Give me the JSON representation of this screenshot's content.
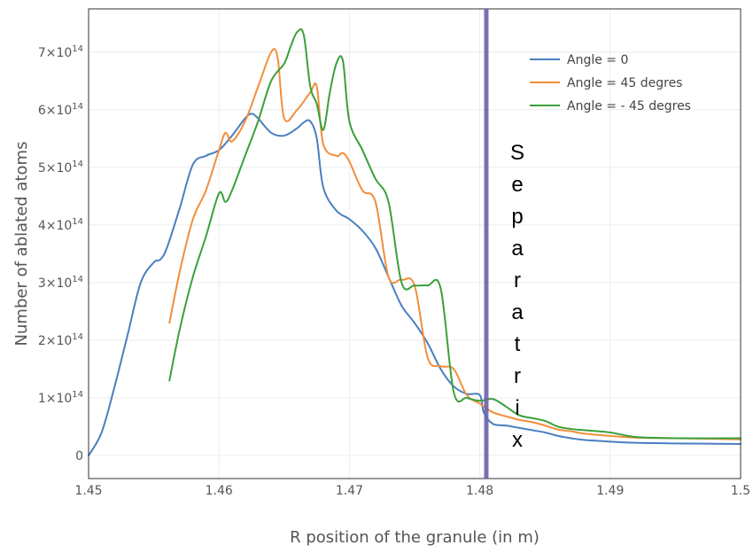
{
  "chart_data": {
    "type": "line",
    "title": "",
    "xlabel": "R position of the granule (in m)",
    "ylabel": "Number of ablated atoms",
    "xlim": [
      1.45,
      1.5
    ],
    "ylim": [
      -0.4,
      7.75
    ],
    "y_multiplier": "×10^14",
    "x_ticks": [
      "1.45",
      "1.46",
      "1.47",
      "1.48",
      "1.49",
      "1.5"
    ],
    "x_tick_values": [
      1.45,
      1.46,
      1.47,
      1.48,
      1.49,
      1.5
    ],
    "y_ticks": [
      {
        "value": 0,
        "mantissa": "0",
        "exp": ""
      },
      {
        "value": 1,
        "mantissa": "1×10",
        "exp": "14"
      },
      {
        "value": 2,
        "mantissa": "2×10",
        "exp": "14"
      },
      {
        "value": 3,
        "mantissa": "3×10",
        "exp": "14"
      },
      {
        "value": 4,
        "mantissa": "4×10",
        "exp": "14"
      },
      {
        "value": 5,
        "mantissa": "5×10",
        "exp": "14"
      },
      {
        "value": 6,
        "mantissa": "6×10",
        "exp": "14"
      },
      {
        "value": 7,
        "mantissa": "7×10",
        "exp": "14"
      }
    ],
    "grid": true,
    "legend_position": "top-right",
    "series": [
      {
        "name": "Angle = 0",
        "color": "#4a7fc0",
        "x": [
          1.45,
          1.451,
          1.452,
          1.453,
          1.454,
          1.455,
          1.4555,
          1.456,
          1.457,
          1.458,
          1.459,
          1.46,
          1.461,
          1.462,
          1.4625,
          1.463,
          1.464,
          1.465,
          1.466,
          1.4665,
          1.467,
          1.4675,
          1.468,
          1.469,
          1.47,
          1.471,
          1.472,
          1.473,
          1.474,
          1.475,
          1.476,
          1.477,
          1.478,
          1.479,
          1.48,
          1.4803,
          1.481,
          1.482,
          1.483,
          1.484,
          1.485,
          1.486,
          1.487,
          1.488,
          1.49,
          1.492,
          1.495,
          1.5
        ],
        "y": [
          0.0,
          0.4,
          1.2,
          2.1,
          3.0,
          3.35,
          3.4,
          3.6,
          4.3,
          5.05,
          5.2,
          5.3,
          5.55,
          5.85,
          5.93,
          5.85,
          5.6,
          5.55,
          5.68,
          5.78,
          5.8,
          5.5,
          4.65,
          4.25,
          4.1,
          3.9,
          3.6,
          3.1,
          2.6,
          2.3,
          1.95,
          1.5,
          1.2,
          1.07,
          1.05,
          0.75,
          0.55,
          0.52,
          0.48,
          0.44,
          0.4,
          0.34,
          0.3,
          0.27,
          0.24,
          0.22,
          0.21,
          0.2
        ]
      },
      {
        "name": "Angle = 45 degres",
        "color": "#f28e3b",
        "x": [
          1.4562,
          1.457,
          1.458,
          1.459,
          1.46,
          1.4605,
          1.461,
          1.462,
          1.463,
          1.464,
          1.4645,
          1.465,
          1.466,
          1.467,
          1.4675,
          1.468,
          1.469,
          1.4695,
          1.47,
          1.471,
          1.472,
          1.473,
          1.474,
          1.475,
          1.476,
          1.477,
          1.478,
          1.479,
          1.48,
          1.481,
          1.482,
          1.483,
          1.484,
          1.485,
          1.486,
          1.487,
          1.488,
          1.49,
          1.492,
          1.495,
          1.5
        ],
        "y": [
          2.3,
          3.2,
          4.1,
          4.6,
          5.3,
          5.6,
          5.45,
          5.8,
          6.4,
          7.0,
          6.9,
          5.85,
          6.0,
          6.3,
          6.4,
          5.4,
          5.2,
          5.25,
          5.1,
          4.6,
          4.4,
          3.1,
          3.05,
          2.95,
          1.7,
          1.55,
          1.5,
          1.05,
          0.9,
          0.75,
          0.68,
          0.62,
          0.58,
          0.52,
          0.45,
          0.42,
          0.38,
          0.34,
          0.31,
          0.3,
          0.28
        ]
      },
      {
        "name": "Angle = - 45 degres",
        "color": "#3aa03a",
        "x": [
          1.4562,
          1.457,
          1.458,
          1.459,
          1.46,
          1.4605,
          1.461,
          1.462,
          1.463,
          1.464,
          1.465,
          1.4655,
          1.466,
          1.4665,
          1.467,
          1.4675,
          1.468,
          1.4685,
          1.469,
          1.4695,
          1.47,
          1.471,
          1.472,
          1.473,
          1.474,
          1.475,
          1.476,
          1.477,
          1.478,
          1.479,
          1.48,
          1.481,
          1.482,
          1.483,
          1.484,
          1.485,
          1.486,
          1.487,
          1.488,
          1.49,
          1.492,
          1.495,
          1.5
        ],
        "y": [
          1.3,
          2.2,
          3.1,
          3.8,
          4.55,
          4.4,
          4.6,
          5.2,
          5.8,
          6.5,
          6.8,
          7.1,
          7.35,
          7.3,
          6.4,
          6.1,
          5.65,
          6.3,
          6.8,
          6.85,
          5.8,
          5.3,
          4.8,
          4.4,
          3.0,
          2.95,
          2.95,
          2.9,
          1.1,
          1.0,
          0.95,
          0.98,
          0.85,
          0.7,
          0.65,
          0.6,
          0.5,
          0.46,
          0.44,
          0.4,
          0.32,
          0.3,
          0.3
        ]
      }
    ],
    "separatrix": {
      "x": 1.4805,
      "color": "#6b5fa8",
      "label_letters": [
        "S",
        "e",
        "p",
        "a",
        "r",
        "a",
        "t",
        "r",
        "i",
        "x"
      ]
    }
  }
}
